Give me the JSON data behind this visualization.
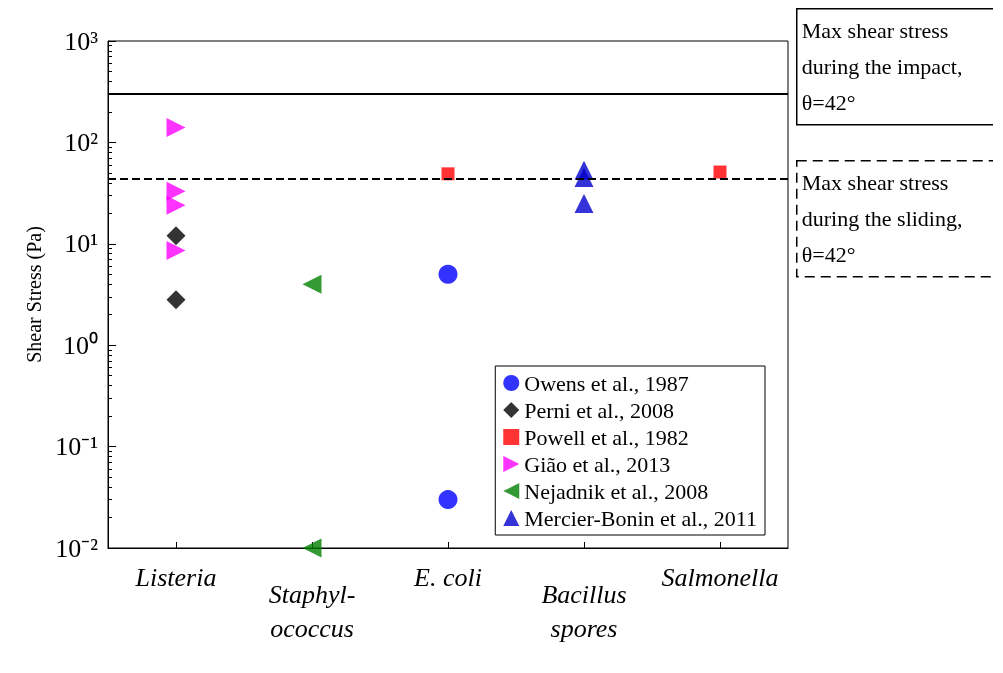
{
  "chart_data": {
    "type": "scatter",
    "ylabel": "Shear Stress (Pa)",
    "categories": [
      "Listeria",
      "Staphyl-\nococcus",
      "E. coli",
      "Bacillus\nspores",
      "Salmonella"
    ],
    "log": "y",
    "ylim": [
      0.01,
      1000
    ],
    "yticks": [
      {
        "value": 0.01,
        "label": "10⁻²"
      },
      {
        "value": 0.1,
        "label": "10⁻¹"
      },
      {
        "value": 1,
        "label": "10⁰"
      },
      {
        "value": 10,
        "label": "10¹"
      },
      {
        "value": 100,
        "label": "10²"
      },
      {
        "value": 1000,
        "label": "10³"
      }
    ],
    "grid": false,
    "legend": "bottom right",
    "series": [
      {
        "name": "Owens et al., 1987",
        "color": "#0000ff",
        "marker": "circle",
        "x": [
          "E. coli",
          "E. coli"
        ],
        "values": [
          5,
          0.03
        ]
      },
      {
        "name": "Perni et al., 2008",
        "color": "#000000",
        "marker": "diamond",
        "x": [
          "Listeria",
          "Listeria"
        ],
        "values": [
          12,
          2.8
        ]
      },
      {
        "name": "Powell et al., 1982",
        "color": "#ff0000",
        "marker": "square",
        "x": [
          "E. coli",
          "Salmonella"
        ],
        "values": [
          49,
          51
        ]
      },
      {
        "name": "Gião et al., 2013",
        "color": "#ff00ff",
        "marker": "triangle-right",
        "x": [
          "Listeria",
          "Listeria",
          "Listeria",
          "Listeria"
        ],
        "values": [
          140,
          33,
          24,
          8.6
        ]
      },
      {
        "name": "Nejadnik et al., 2008",
        "color": "#008000",
        "marker": "triangle-left",
        "x": [
          "Staphyl-\nococcus",
          "Staphyl-\nococcus"
        ],
        "values": [
          4,
          0.01
        ]
      },
      {
        "name": "Mercier-Bonin et al., 2011",
        "color": "#0000cd",
        "marker": "triangle",
        "x": [
          "Bacillus\nspores",
          "Bacillus\nspores",
          "Bacillus\nspores"
        ],
        "values": [
          53,
          45,
          25
        ]
      }
    ],
    "ref_lines": [
      {
        "axis": "y",
        "value": 300,
        "color": "#000000",
        "line_style": "solid"
      },
      {
        "axis": "y",
        "value": 44,
        "color": "#000000",
        "line_style": "dashed"
      }
    ],
    "annotations": [
      "Max shear stress during the impact, θ=42°",
      "Max shear stress during the sliding, θ=42°"
    ]
  }
}
